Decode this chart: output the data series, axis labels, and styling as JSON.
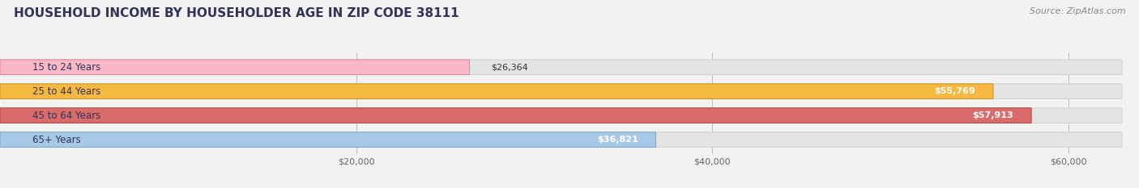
{
  "title": "HOUSEHOLD INCOME BY HOUSEHOLDER AGE IN ZIP CODE 38111",
  "source": "Source: ZipAtlas.com",
  "categories": [
    "15 to 24 Years",
    "25 to 44 Years",
    "45 to 64 Years",
    "65+ Years"
  ],
  "values": [
    26364,
    55769,
    57913,
    36821
  ],
  "bar_colors": [
    "#f9b8c8",
    "#f5b942",
    "#d96b6b",
    "#a8c8e8"
  ],
  "bar_edge_colors": [
    "#e8809a",
    "#c99020",
    "#b04040",
    "#70a8d0"
  ],
  "value_labels": [
    "$26,364",
    "$55,769",
    "$57,913",
    "$36,821"
  ],
  "xlim_max": 63000,
  "xticks": [
    20000,
    40000,
    60000
  ],
  "xticklabels": [
    "$20,000",
    "$40,000",
    "$60,000"
  ],
  "bg_color": "#f2f2f2",
  "bar_bg_color": "#e4e4e4",
  "bar_bg_edge_color": "#d0d0d0",
  "title_color": "#333355",
  "source_color": "#888888",
  "label_color": "#333355",
  "value_color_dark": "#333333",
  "value_color_light": "#ffffff",
  "title_fontsize": 11,
  "source_fontsize": 8,
  "label_fontsize": 8.5,
  "value_fontsize": 8,
  "tick_fontsize": 8
}
